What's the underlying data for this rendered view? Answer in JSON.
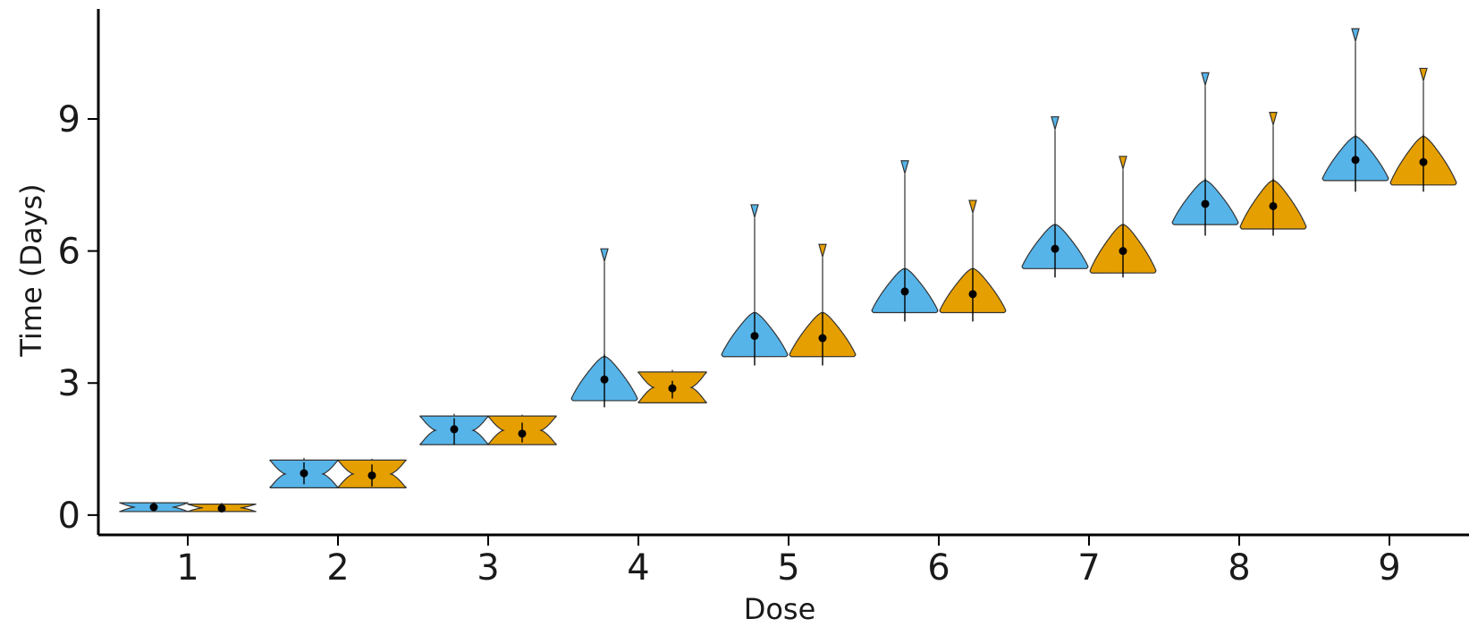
{
  "chart_data": {
    "type": "violin",
    "title": "",
    "xlabel": "Dose",
    "ylabel": "Time (Days)",
    "categories": [
      "1",
      "2",
      "3",
      "4",
      "5",
      "6",
      "7",
      "8",
      "9"
    ],
    "y_ticks": [
      "0",
      "3",
      "6",
      "9"
    ],
    "ylim": [
      -0.45,
      11.5
    ],
    "grid": false,
    "legend": "none",
    "series": [
      {
        "color": "#56B4E9",
        "median": [
          0.18,
          0.95,
          1.95,
          3.08,
          4.07,
          5.08,
          6.05,
          7.07,
          8.07
        ],
        "lower": [
          0.1,
          0.7,
          1.6,
          2.45,
          3.4,
          4.4,
          5.4,
          6.35,
          7.35
        ],
        "upper": [
          0.25,
          1.2,
          2.2,
          3.65,
          4.6,
          5.6,
          6.6,
          7.65,
          8.65
        ],
        "violin_min": [
          0.08,
          0.62,
          1.6,
          2.6,
          3.6,
          4.6,
          5.6,
          6.6,
          7.6
        ],
        "violin_max": [
          0.28,
          1.25,
          2.25,
          3.6,
          4.6,
          5.6,
          6.6,
          7.6,
          8.6
        ],
        "max": [
          0.3,
          1.3,
          2.3,
          6.05,
          7.05,
          8.05,
          9.05,
          10.05,
          11.05
        ]
      },
      {
        "color": "#E69F00",
        "median": [
          0.15,
          0.9,
          1.85,
          2.88,
          4.02,
          5.02,
          6.0,
          7.02,
          8.02
        ],
        "lower": [
          0.1,
          0.65,
          1.65,
          2.65,
          3.4,
          4.4,
          5.4,
          6.35,
          7.35
        ],
        "upper": [
          0.22,
          1.15,
          2.1,
          3.05,
          4.6,
          5.6,
          6.6,
          7.65,
          8.65
        ],
        "violin_min": [
          0.08,
          0.62,
          1.6,
          2.55,
          3.6,
          4.6,
          5.5,
          6.5,
          7.5
        ],
        "violin_max": [
          0.25,
          1.25,
          2.25,
          3.25,
          4.6,
          5.6,
          6.6,
          7.6,
          8.6
        ],
        "max": [
          0.28,
          1.28,
          2.28,
          3.3,
          6.15,
          7.15,
          8.15,
          9.15,
          10.15
        ]
      }
    ]
  }
}
